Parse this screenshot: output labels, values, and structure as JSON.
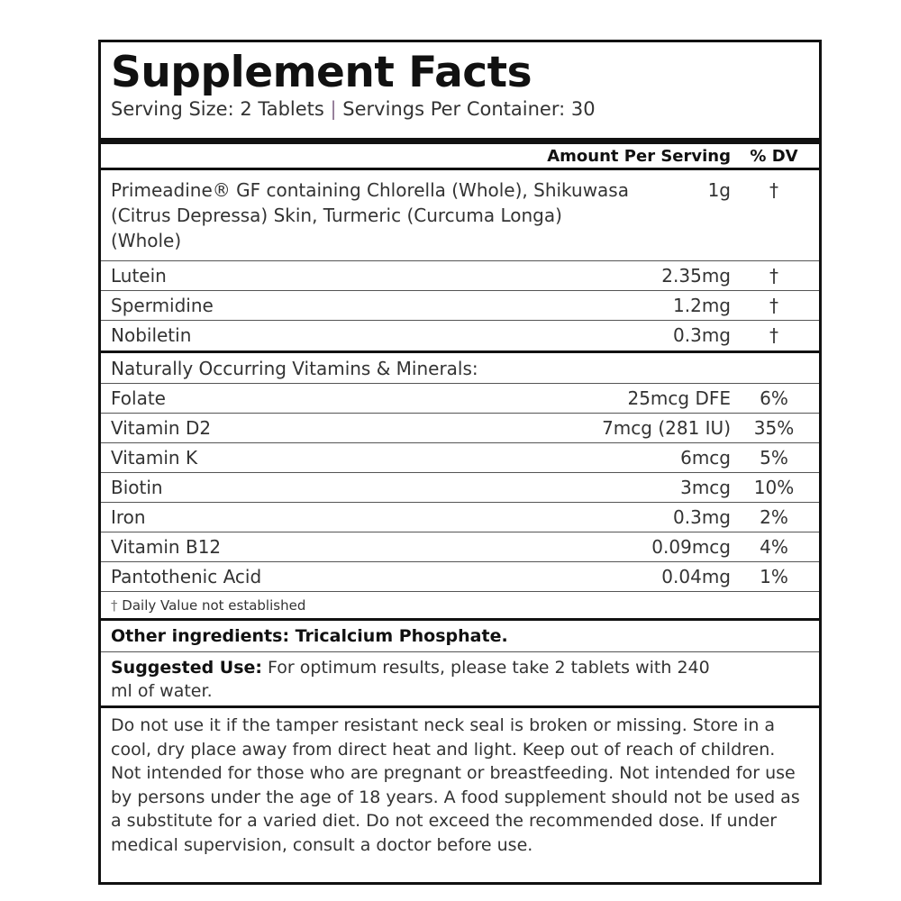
{
  "title": "Supplement Facts",
  "serving": {
    "size": "Serving Size: 2 Tablets",
    "separator": "|",
    "per_container": "Servings Per Container: 30"
  },
  "header": {
    "amount": "Amount Per Serving",
    "dv": "% DV"
  },
  "primary": {
    "name": "Primeadine® GF containing Chlorella (Whole), Shikuwasa (Citrus Depressa) Skin, Turmeric (Curcuma Longa) (Whole)",
    "amount": "1g",
    "dv": "†"
  },
  "actives": [
    {
      "name": "Lutein",
      "amount": "2.35mg",
      "dv": "†"
    },
    {
      "name": "Spermidine",
      "amount": "1.2mg",
      "dv": "†"
    },
    {
      "name": "Nobiletin",
      "amount": "0.3mg",
      "dv": "†"
    }
  ],
  "vitamins_heading": "Naturally Occurring Vitamins & Minerals:",
  "vitamins": [
    {
      "name": "Folate",
      "amount": "25mcg DFE",
      "dv": "6%"
    },
    {
      "name": "Vitamin D2",
      "amount": "7mcg (281 IU)",
      "dv": "35%"
    },
    {
      "name": "Vitamin K",
      "amount": "6mcg",
      "dv": "5%"
    },
    {
      "name": "Biotin",
      "amount": "3mcg",
      "dv": "10%"
    },
    {
      "name": "Iron",
      "amount": "0.3mg",
      "dv": "2%"
    },
    {
      "name": "Vitamin B12",
      "amount": "0.09mcg",
      "dv": "4%"
    },
    {
      "name": "Pantothenic Acid",
      "amount": "0.04mg",
      "dv": "1%"
    }
  ],
  "footnote": {
    "symbol": "†",
    "text": "Daily Value not established"
  },
  "other_ingredients": "Other ingredients: Tricalcium Phosphate.",
  "suggested_use": {
    "label": "Suggested Use:",
    "text": " For optimum results, please take 2 tablets with 240 ml of water."
  },
  "warnings": "Do not use it if the tamper resistant neck seal is broken or missing. Store in a cool, dry place away from direct heat and light. Keep out of reach of children. Not intended for those who are pregnant or breastfeeding. Not intended for use by persons under the age of 18 years. A food supplement should not be used as a substitute for a varied diet. Do not exceed the recommended dose. If under medical supervision, consult a doctor before use."
}
